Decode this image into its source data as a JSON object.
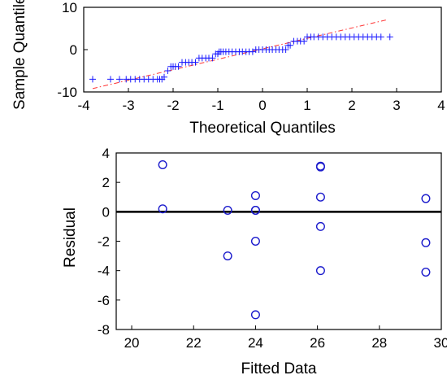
{
  "chart_data": [
    {
      "type": "scatter",
      "xlabel": "Theoretical Quantiles",
      "ylabel": "Sample Quantiles",
      "xlim": [
        -4,
        4
      ],
      "ylim": [
        -10,
        10
      ],
      "xticks": [
        "-4",
        "-3",
        "-2",
        "-1",
        "0",
        "1",
        "2",
        "3",
        "4"
      ],
      "yticks": [
        "10",
        "0",
        "-10"
      ],
      "marker": "+",
      "marker_color": "#1a1aff",
      "reference_line": {
        "style": "dash-dot",
        "color": "#ff3333",
        "from": [
          -3.8,
          -9.2
        ],
        "to": [
          2.8,
          7.1
        ]
      },
      "series": [
        {
          "x": [
            -3.8,
            -3.4,
            -3.2,
            -3.05,
            -2.95,
            -2.85,
            -2.75,
            -2.65,
            -2.55,
            -2.45,
            -2.35,
            -2.3,
            -2.25,
            -2.2,
            -2.12,
            -2.05,
            -2.0,
            -1.95,
            -1.88,
            -1.8,
            -1.72,
            -1.65,
            -1.58,
            -1.5,
            -1.42,
            -1.35,
            -1.27,
            -1.2,
            -1.12,
            -1.05,
            -1.0,
            -0.97,
            -0.93,
            -0.88,
            -0.82,
            -0.75,
            -0.68,
            -0.6,
            -0.52,
            -0.45,
            -0.37,
            -0.3,
            -0.22,
            -0.15,
            -0.08,
            0.0,
            0.08,
            0.15,
            0.22,
            0.3,
            0.37,
            0.45,
            0.52,
            0.57,
            0.62,
            0.7,
            0.78,
            0.85,
            0.93,
            1.0,
            1.08,
            1.15,
            1.25,
            1.35,
            1.45,
            1.55,
            1.65,
            1.75,
            1.85,
            1.95,
            2.05,
            2.15,
            2.25,
            2.35,
            2.45,
            2.55,
            2.65,
            2.85
          ],
          "y": [
            -7.0,
            -7.0,
            -7.0,
            -7.0,
            -7.0,
            -7.0,
            -7.0,
            -7.0,
            -7.0,
            -7.0,
            -7.0,
            -7.0,
            -7.0,
            -6.5,
            -5.0,
            -4.0,
            -4.0,
            -4.0,
            -4.0,
            -3.0,
            -3.0,
            -3.0,
            -3.0,
            -3.0,
            -2.0,
            -2.0,
            -2.0,
            -2.0,
            -2.0,
            -1.0,
            -1.0,
            -0.5,
            -0.5,
            -0.5,
            -0.5,
            -0.5,
            -0.5,
            -0.5,
            -0.5,
            -0.5,
            -0.5,
            -0.5,
            -0.5,
            0.0,
            0.0,
            0.0,
            0.0,
            0.0,
            0.0,
            0.0,
            0.0,
            0.0,
            0.0,
            1.0,
            1.0,
            2.0,
            2.0,
            2.0,
            2.0,
            3.0,
            3.0,
            3.0,
            3.0,
            3.0,
            3.0,
            3.0,
            3.0,
            3.0,
            3.0,
            3.0,
            3.0,
            3.0,
            3.0,
            3.0,
            3.0,
            3.0,
            3.0,
            3.0
          ]
        }
      ]
    },
    {
      "type": "scatter",
      "xlabel": "Fitted Data",
      "ylabel": "Residual",
      "xlim": [
        19.5,
        30
      ],
      "ylim": [
        -8,
        4
      ],
      "xticks": [
        "20",
        "22",
        "24",
        "26",
        "28",
        "30"
      ],
      "yticks": [
        "4",
        "2",
        "0",
        "-2",
        "-4",
        "-6",
        "-8"
      ],
      "marker": "o",
      "marker_color": "#1a1acc",
      "zero_line": true,
      "series": [
        {
          "x": [
            21.0,
            21.0,
            23.1,
            23.1,
            24.0,
            24.0,
            24.0,
            24.0,
            24.0,
            26.1,
            26.1,
            26.1,
            26.1,
            26.1,
            29.5,
            29.5,
            29.5
          ],
          "y": [
            3.2,
            0.2,
            0.1,
            -3.0,
            1.1,
            0.1,
            -2.0,
            -7.0,
            0.1,
            3.1,
            1.0,
            -1.0,
            -4.0,
            3.05,
            0.9,
            -2.1,
            -4.1
          ]
        }
      ]
    }
  ]
}
